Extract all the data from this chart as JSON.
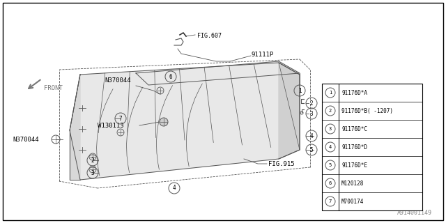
{
  "bg_color": "#ffffff",
  "line_color": "#555555",
  "text_color": "#000000",
  "watermark": "A914001149",
  "legend_items": [
    {
      "num": "1",
      "code": "91176D*A"
    },
    {
      "num": "2",
      "code": "91176D*B( -1207)"
    },
    {
      "num": "3",
      "code": "91176D*C"
    },
    {
      "num": "4",
      "code": "91176D*D"
    },
    {
      "num": "5",
      "code": "91176D*E"
    },
    {
      "num": "6",
      "code": "M120128"
    },
    {
      "num": "7",
      "code": "M700174"
    }
  ]
}
